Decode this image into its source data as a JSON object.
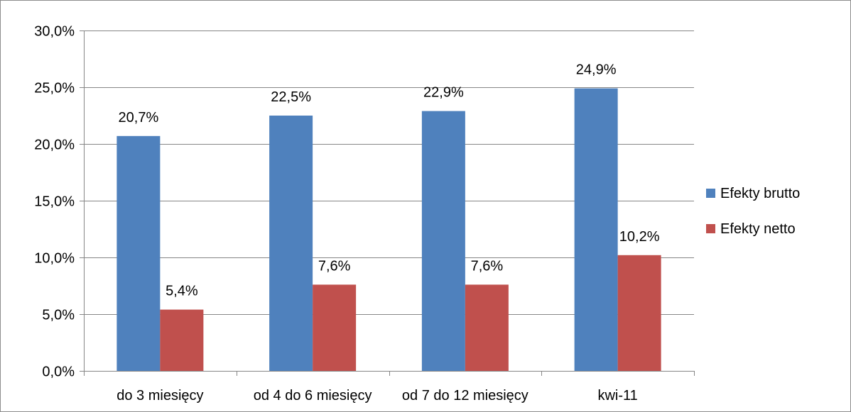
{
  "chart_data": {
    "type": "bar",
    "categories": [
      "do 3 miesięcy",
      "od 4 do 6 miesięcy",
      "od 7 do 12 miesięcy",
      "kwi-11"
    ],
    "series": [
      {
        "name": "Efekty brutto",
        "color": "#4f81bd",
        "values": [
          20.7,
          22.5,
          22.9,
          24.9
        ],
        "labels": [
          "20,7%",
          "22,5%",
          "22,9%",
          "24,9%"
        ]
      },
      {
        "name": "Efekty netto",
        "color": "#c0504d",
        "values": [
          5.4,
          7.6,
          7.6,
          10.2
        ],
        "labels": [
          "5,4%",
          "7,6%",
          "7,6%",
          "10,2%"
        ]
      }
    ],
    "ylim": [
      0,
      30
    ],
    "yticks": [
      0,
      5,
      10,
      15,
      20,
      25,
      30
    ],
    "ytick_labels": [
      "0,0%",
      "5,0%",
      "10,0%",
      "15,0%",
      "20,0%",
      "25,0%",
      "30,0%"
    ],
    "grid": true,
    "legend_position": "right",
    "gridline_color": "#868686"
  }
}
